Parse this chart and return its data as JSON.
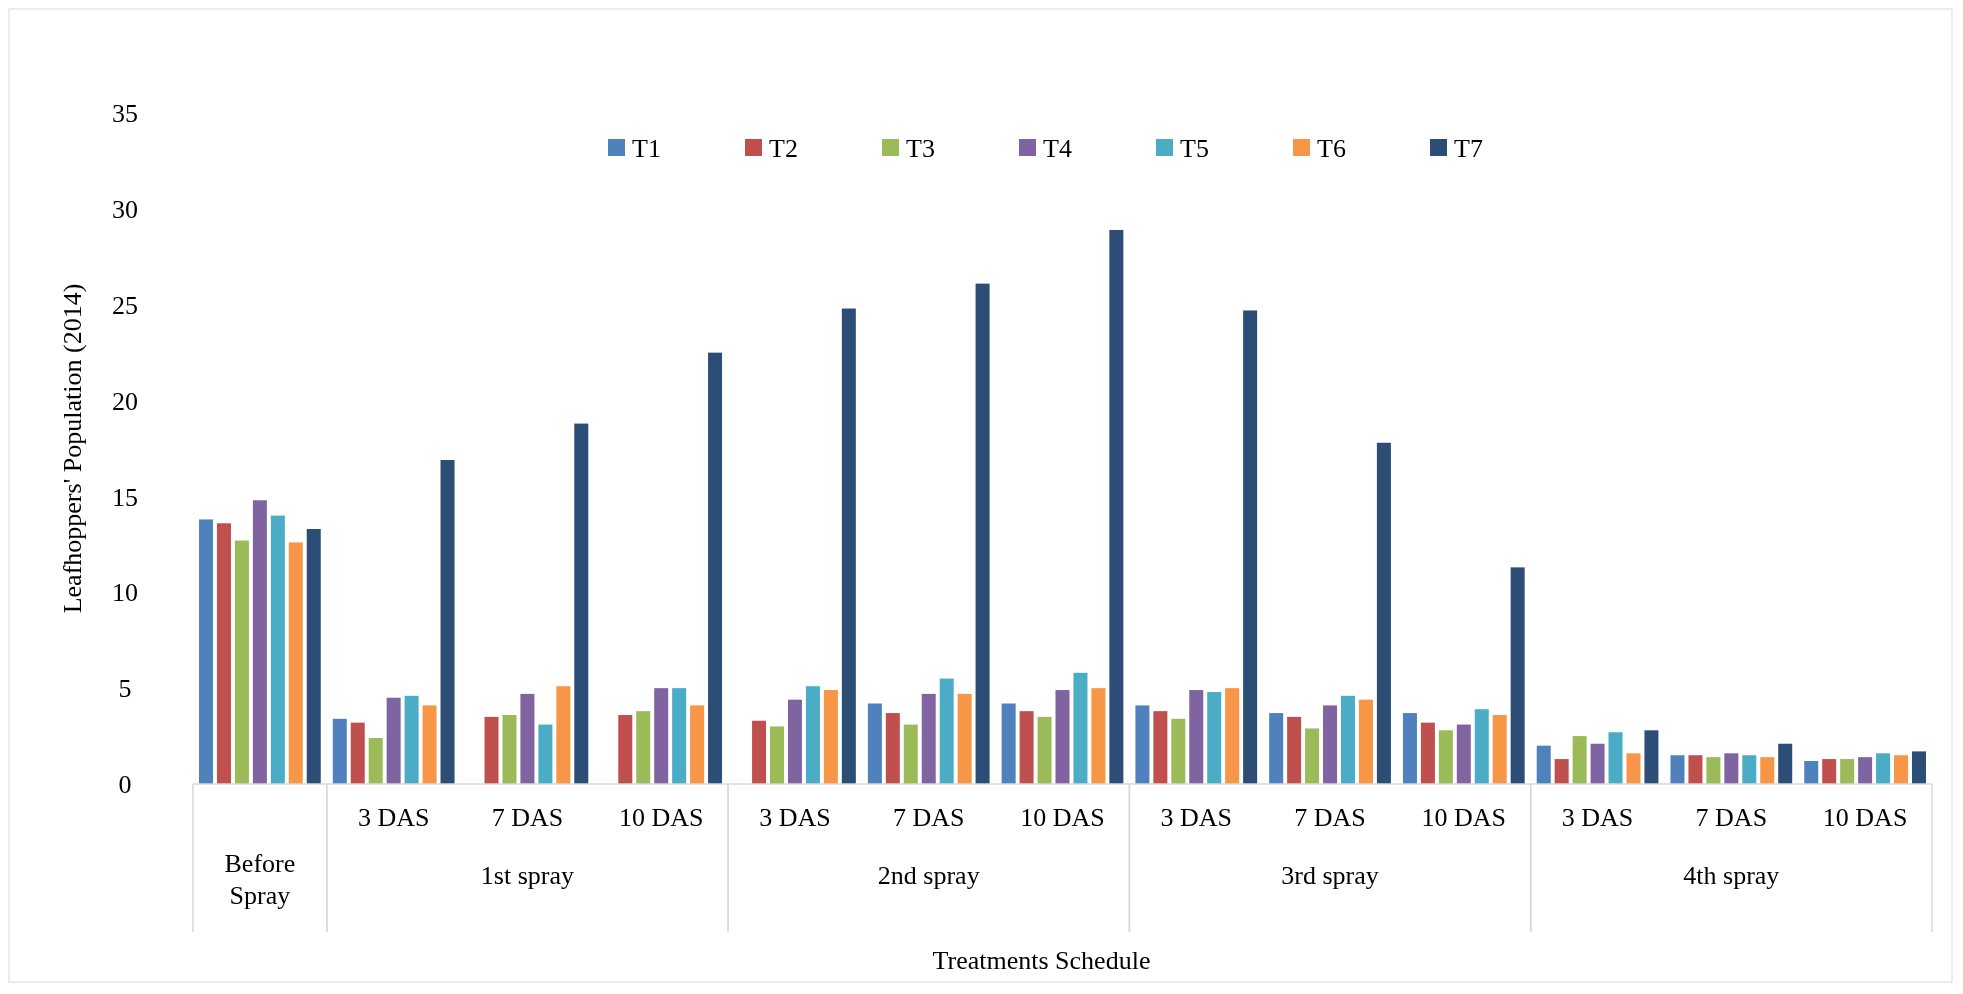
{
  "chart_data": {
    "type": "bar",
    "xlabel": "Treatments Schedule",
    "ylabel": "Leafhoppers' Population (2014)",
    "categories": [
      null,
      "3 DAS",
      "7 DAS",
      "10 DAS",
      "3 DAS",
      "7 DAS",
      "10 DAS",
      "3 DAS",
      "7 DAS",
      "10 DAS",
      "3 DAS",
      "7 DAS",
      "10 DAS"
    ],
    "annotations": [
      "Before Spray",
      "1st spray",
      "2nd spray",
      "3rd spray",
      "4th spray"
    ],
    "series": [
      {
        "name": "T1",
        "color": "#4f81bd",
        "values": [
          13.8,
          3.4,
          null,
          null,
          null,
          4.2,
          4.2,
          4.1,
          3.7,
          3.7,
          2.0,
          1.5,
          1.2
        ]
      },
      {
        "name": "T2",
        "color": "#c0504d",
        "values": [
          13.6,
          3.2,
          3.5,
          3.6,
          3.3,
          3.7,
          3.8,
          3.8,
          3.5,
          3.2,
          1.3,
          1.5,
          1.3
        ]
      },
      {
        "name": "T3",
        "color": "#9bbb59",
        "values": [
          12.7,
          2.4,
          3.6,
          3.8,
          3.0,
          3.1,
          3.5,
          3.4,
          2.9,
          2.8,
          2.5,
          1.4,
          1.3
        ]
      },
      {
        "name": "T4",
        "color": "#8064a2",
        "values": [
          14.8,
          4.5,
          4.7,
          5.0,
          4.4,
          4.7,
          4.9,
          4.9,
          4.1,
          3.1,
          2.1,
          1.6,
          1.4
        ]
      },
      {
        "name": "T5",
        "color": "#4bacc6",
        "values": [
          14.0,
          4.6,
          3.1,
          5.0,
          5.1,
          5.5,
          5.8,
          4.8,
          4.6,
          3.9,
          2.7,
          1.5,
          1.6
        ]
      },
      {
        "name": "T6",
        "color": "#f79646",
        "values": [
          12.6,
          4.1,
          5.1,
          4.1,
          4.9,
          4.7,
          5.0,
          5.0,
          4.4,
          3.6,
          1.6,
          1.4,
          1.5
        ]
      },
      {
        "name": "T7",
        "color": "#2c4d75",
        "values": [
          13.3,
          16.9,
          18.8,
          22.5,
          24.8,
          26.1,
          28.9,
          24.7,
          17.8,
          11.3,
          2.8,
          2.1,
          1.7
        ]
      }
    ],
    "ylim": [
      0,
      35
    ],
    "yticks": [
      0,
      5,
      10,
      15,
      20,
      25,
      30,
      35
    ],
    "legend": "top",
    "grid": false
  }
}
